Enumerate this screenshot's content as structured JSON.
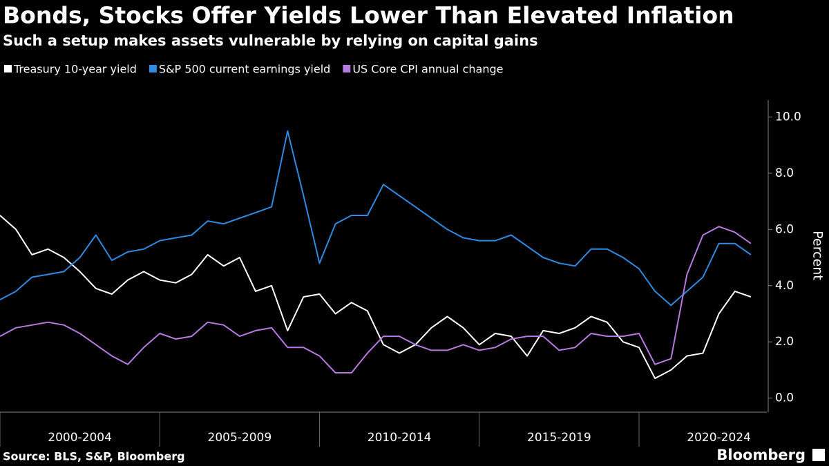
{
  "chart_data": {
    "type": "line",
    "title": "Bonds, Stocks Offer Yields Lower Than Elevated Inflation",
    "subtitle": "Such a setup makes assets vulnerable by relying on capital gains",
    "y_axis_label": "Percent",
    "source": "Source: BLS, S&P, Bloomberg",
    "brand": "Bloomberg",
    "x": [
      2000,
      2000.5,
      2001,
      2001.5,
      2002,
      2002.5,
      2003,
      2003.5,
      2004,
      2004.5,
      2005,
      2005.5,
      2006,
      2006.5,
      2007,
      2007.5,
      2008,
      2008.5,
      2009,
      2009.5,
      2010,
      2010.5,
      2011,
      2011.5,
      2012,
      2012.5,
      2013,
      2013.5,
      2014,
      2014.5,
      2015,
      2015.5,
      2016,
      2016.5,
      2017,
      2017.5,
      2018,
      2018.5,
      2019,
      2019.5,
      2020,
      2020.5,
      2021,
      2021.5,
      2022,
      2022.5,
      2023,
      2023.5
    ],
    "xlim": [
      2000,
      2024
    ],
    "xticks": [
      {
        "value": 2000,
        "label": "2000-2004"
      },
      {
        "value": 2005,
        "label": "2005-2009"
      },
      {
        "value": 2010,
        "label": "2010-2014"
      },
      {
        "value": 2015,
        "label": "2015-2019"
      },
      {
        "value": 2020,
        "label": "2020-2024"
      }
    ],
    "ylim": [
      -0.5,
      10.6
    ],
    "yticks": [
      {
        "value": 0,
        "label": "0.0"
      },
      {
        "value": 2,
        "label": "2.0"
      },
      {
        "value": 4,
        "label": "4.0"
      },
      {
        "value": 6,
        "label": "6.0"
      },
      {
        "value": 8,
        "label": "8.0"
      },
      {
        "value": 10,
        "label": "10.0"
      }
    ],
    "series": [
      {
        "name": "Treasury 10-year yield",
        "color": "#ffffff",
        "values": [
          6.5,
          6.0,
          5.1,
          5.3,
          5.0,
          4.5,
          3.9,
          3.7,
          4.2,
          4.5,
          4.2,
          4.1,
          4.4,
          5.1,
          4.7,
          5.0,
          3.8,
          4.0,
          2.4,
          3.6,
          3.7,
          3.0,
          3.4,
          3.1,
          1.9,
          1.6,
          1.9,
          2.5,
          2.9,
          2.5,
          1.9,
          2.3,
          2.2,
          1.5,
          2.4,
          2.3,
          2.5,
          2.9,
          2.7,
          2.0,
          1.8,
          0.7,
          1.0,
          1.5,
          1.6,
          3.0,
          3.8,
          3.6
        ]
      },
      {
        "name": "S&P 500 current earnings yield",
        "color": "#2f8ae0",
        "values": [
          3.5,
          3.8,
          4.3,
          4.4,
          4.5,
          5.0,
          5.8,
          4.9,
          5.2,
          5.3,
          5.6,
          5.7,
          5.8,
          6.3,
          6.2,
          6.4,
          6.6,
          6.8,
          9.5,
          7.2,
          4.8,
          6.2,
          6.5,
          6.5,
          7.6,
          7.2,
          6.8,
          6.4,
          6.0,
          5.7,
          5.6,
          5.6,
          5.8,
          5.4,
          5.0,
          4.8,
          4.7,
          5.3,
          5.3,
          5.0,
          4.6,
          3.8,
          3.3,
          3.8,
          4.3,
          5.5,
          5.5,
          5.1
        ]
      },
      {
        "name": "US Core CPI annual change",
        "color": "#b77be0",
        "values": [
          2.2,
          2.5,
          2.6,
          2.7,
          2.6,
          2.3,
          1.9,
          1.5,
          1.2,
          1.8,
          2.3,
          2.1,
          2.2,
          2.7,
          2.6,
          2.2,
          2.4,
          2.5,
          1.8,
          1.8,
          1.5,
          0.9,
          0.9,
          1.6,
          2.2,
          2.2,
          1.9,
          1.7,
          1.7,
          1.9,
          1.7,
          1.8,
          2.1,
          2.2,
          2.2,
          1.7,
          1.8,
          2.3,
          2.2,
          2.2,
          2.3,
          1.2,
          1.4,
          4.4,
          5.8,
          6.1,
          5.9,
          5.5
        ]
      }
    ]
  }
}
